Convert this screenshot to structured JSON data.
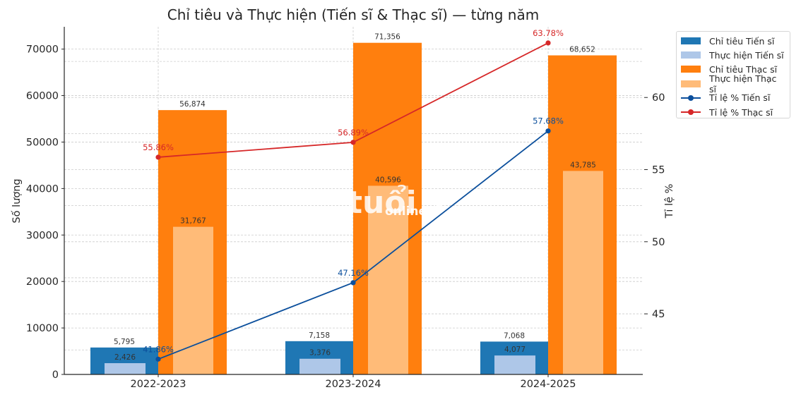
{
  "title": "Chỉ tiêu và Thực hiện (Tiến sĩ & Thạc sĩ) — từng năm",
  "watermark": {
    "main": "tuổi 1",
    "sub": "online"
  },
  "colors": {
    "chi_tieu_tien_si": "#1f77b4",
    "thuc_hien_tien_si": "#aec7e8",
    "chi_tieu_thac_si": "#ff7f0e",
    "thuc_hien_thac_si": "#ffbb78",
    "ti_le_tien_si": "#0b4f9c",
    "ti_le_thac_si": "#d62728",
    "grid": "#cccccc",
    "axis": "#262626",
    "text": "#262626"
  },
  "legend": {
    "items": [
      {
        "label": "Chỉ tiêu Tiến sĩ",
        "kind": "bar",
        "color": "#1f77b4"
      },
      {
        "label": "Thực hiện Tiến sĩ",
        "kind": "bar",
        "color": "#aec7e8"
      },
      {
        "label": "Chỉ tiêu Thạc sĩ",
        "kind": "bar",
        "color": "#ff7f0e"
      },
      {
        "label": "Thực hiện Thạc sĩ",
        "kind": "bar",
        "color": "#ffbb78"
      },
      {
        "label": "Tỉ lệ % Tiến sĩ",
        "kind": "line",
        "color": "#0b4f9c"
      },
      {
        "label": "Tỉ lệ % Thạc sĩ",
        "kind": "line",
        "color": "#d62728"
      }
    ]
  },
  "chart_data": {
    "type": "bar",
    "title": "Chỉ tiêu và Thực hiện (Tiến sĩ & Thạc sĩ) — từng năm",
    "xlabel": "",
    "ylabel": "Số lượng",
    "ylabel_right": "Tỉ lệ %",
    "categories": [
      "2022-2023",
      "2023-2024",
      "2024-2025"
    ],
    "ylim": [
      0,
      74800
    ],
    "yticks": [
      0,
      10000,
      20000,
      30000,
      40000,
      50000,
      60000,
      70000
    ],
    "ylim_right": [
      40.8,
      64.9
    ],
    "yticks_right": [
      45,
      50,
      55,
      60
    ],
    "grid": true,
    "legend_position": "upper right, outside plot",
    "series": [
      {
        "name": "Chỉ tiêu Tiến sĩ",
        "type": "bar",
        "axis": "left",
        "values": [
          5795,
          7158,
          7068
        ],
        "labels": [
          "5,795",
          "7,158",
          "7,068"
        ]
      },
      {
        "name": "Thực hiện Tiến sĩ",
        "type": "bar",
        "axis": "left",
        "values": [
          2426,
          3376,
          4077
        ],
        "labels": [
          "2,426",
          "3,376",
          "4,077"
        ]
      },
      {
        "name": "Chỉ tiêu Thạc sĩ",
        "type": "bar",
        "axis": "left",
        "values": [
          56874,
          71356,
          68652
        ],
        "labels": [
          "56,874",
          "71,356",
          "68,652"
        ]
      },
      {
        "name": "Thực hiện Thạc sĩ",
        "type": "bar",
        "axis": "left",
        "values": [
          31767,
          40596,
          43785
        ],
        "labels": [
          "31,767",
          "40,596",
          "43,785"
        ]
      },
      {
        "name": "Tỉ lệ % Tiến sĩ",
        "type": "line",
        "axis": "right",
        "values": [
          41.86,
          47.16,
          57.68
        ],
        "labels": [
          "41.86%",
          "47.16%",
          "57.68%"
        ]
      },
      {
        "name": "Tỉ lệ % Thạc sĩ",
        "type": "line",
        "axis": "right",
        "values": [
          55.86,
          56.89,
          63.78
        ],
        "labels": [
          "55.86%",
          "56.89%",
          "63.78%"
        ]
      }
    ]
  }
}
